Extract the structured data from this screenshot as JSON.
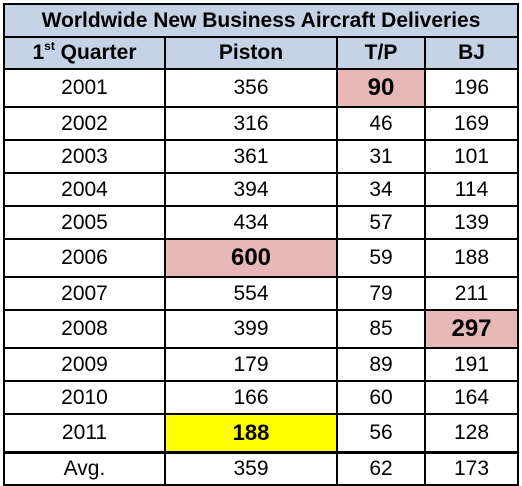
{
  "chart_data": {
    "type": "table",
    "title": "Worldwide New Business Aircraft Deliveries",
    "columns": [
      "1st Quarter",
      "Piston",
      "T/P",
      "BJ"
    ],
    "rows": [
      {
        "year": "2001",
        "piston": 356,
        "tp": 90,
        "bj": 196,
        "highlight": "tp"
      },
      {
        "year": "2002",
        "piston": 316,
        "tp": 46,
        "bj": 169
      },
      {
        "year": "2003",
        "piston": 361,
        "tp": 31,
        "bj": 101
      },
      {
        "year": "2004",
        "piston": 394,
        "tp": 34,
        "bj": 114
      },
      {
        "year": "2005",
        "piston": 434,
        "tp": 57,
        "bj": 139
      },
      {
        "year": "2006",
        "piston": 600,
        "tp": 59,
        "bj": 188,
        "highlight": "piston"
      },
      {
        "year": "2007",
        "piston": 554,
        "tp": 79,
        "bj": 211
      },
      {
        "year": "2008",
        "piston": 399,
        "tp": 85,
        "bj": 297,
        "highlight": "bj"
      },
      {
        "year": "2009",
        "piston": 179,
        "tp": 89,
        "bj": 191
      },
      {
        "year": "2010",
        "piston": 166,
        "tp": 60,
        "bj": 164
      },
      {
        "year": "2011",
        "piston": 188,
        "tp": 56,
        "bj": 128,
        "highlight": "piston",
        "highlight_color": "yellow"
      }
    ],
    "average": {
      "label": "Avg.",
      "piston": 359,
      "tp": 62,
      "bj": 173
    }
  },
  "colors": {
    "header_bg": "#c6d2e6",
    "highlight_pink": "#e6b8b7",
    "highlight_yellow": "#ffff00"
  }
}
